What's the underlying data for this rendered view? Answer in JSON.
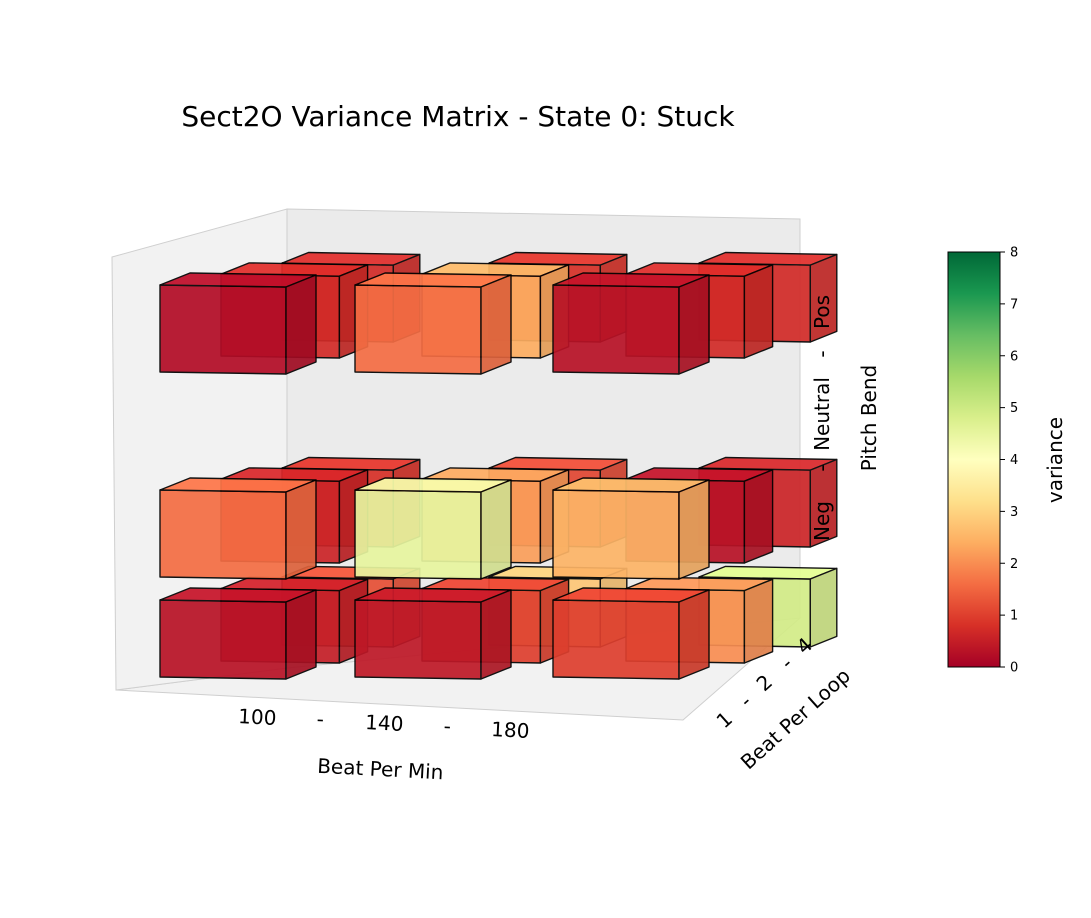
{
  "chart_data": {
    "type": "3d-bar",
    "title": "Sect2O Variance Matrix - State 0: Stuck",
    "x_axis": {
      "label": "Beat Per Min",
      "ticks": [
        "100",
        "-",
        "140",
        "-",
        "180"
      ],
      "categories": [
        "100",
        "140",
        "180"
      ]
    },
    "y_axis": {
      "label": "Beat Per Loop",
      "ticks": [
        "1",
        "-",
        "2",
        "-",
        "4"
      ],
      "categories": [
        "1",
        "2",
        "4"
      ]
    },
    "z_axis": {
      "label": "Pitch Bend",
      "ticks": [
        "Neg",
        "-",
        "Neutral",
        "-",
        "Pos"
      ],
      "categories": [
        "Neg",
        "Neutral",
        "Pos"
      ]
    },
    "colorbar": {
      "label": "variance",
      "min": 0,
      "max": 8,
      "ticks": [
        "0",
        "1",
        "2",
        "3",
        "4",
        "5",
        "6",
        "7",
        "8"
      ],
      "colormap": "RdYlGn"
    },
    "cells": [
      {
        "bpm": "100",
        "loop": "1",
        "pitch": "Neg",
        "variance": 0.3
      },
      {
        "bpm": "100",
        "loop": "2",
        "pitch": "Neg",
        "variance": 0.5
      },
      {
        "bpm": "100",
        "loop": "4",
        "pitch": "Neg",
        "variance": 1.2
      },
      {
        "bpm": "140",
        "loop": "1",
        "pitch": "Neg",
        "variance": 0.4
      },
      {
        "bpm": "140",
        "loop": "2",
        "pitch": "Neg",
        "variance": 1.0
      },
      {
        "bpm": "140",
        "loop": "4",
        "pitch": "Neg",
        "variance": 2.8
      },
      {
        "bpm": "180",
        "loop": "1",
        "pitch": "Neg",
        "variance": 1.0
      },
      {
        "bpm": "180",
        "loop": "2",
        "pitch": "Neg",
        "variance": 2.0
      },
      {
        "bpm": "180",
        "loop": "4",
        "pitch": "Neg",
        "variance": 4.9
      },
      {
        "bpm": "100",
        "loop": "1",
        "pitch": "Neutral",
        "variance": 1.6
      },
      {
        "bpm": "100",
        "loop": "2",
        "pitch": "Neutral",
        "variance": 0.6
      },
      {
        "bpm": "100",
        "loop": "4",
        "pitch": "Neutral",
        "variance": 0.8
      },
      {
        "bpm": "140",
        "loop": "1",
        "pitch": "Neutral",
        "variance": 4.5
      },
      {
        "bpm": "140",
        "loop": "2",
        "pitch": "Neutral",
        "variance": 2.2
      },
      {
        "bpm": "140",
        "loop": "4",
        "pitch": "Neutral",
        "variance": 1.1
      },
      {
        "bpm": "180",
        "loop": "1",
        "pitch": "Neutral",
        "variance": 2.5
      },
      {
        "bpm": "180",
        "loop": "2",
        "pitch": "Neutral",
        "variance": 0.3
      },
      {
        "bpm": "180",
        "loop": "4",
        "pitch": "Neutral",
        "variance": 0.6
      },
      {
        "bpm": "100",
        "loop": "1",
        "pitch": "Pos",
        "variance": 0.2
      },
      {
        "bpm": "100",
        "loop": "2",
        "pitch": "Pos",
        "variance": 0.7
      },
      {
        "bpm": "100",
        "loop": "4",
        "pitch": "Pos",
        "variance": 0.7
      },
      {
        "bpm": "140",
        "loop": "1",
        "pitch": "Pos",
        "variance": 1.6
      },
      {
        "bpm": "140",
        "loop": "2",
        "pitch": "Pos",
        "variance": 2.4
      },
      {
        "bpm": "140",
        "loop": "4",
        "pitch": "Pos",
        "variance": 0.8
      },
      {
        "bpm": "180",
        "loop": "1",
        "pitch": "Pos",
        "variance": 0.3
      },
      {
        "bpm": "180",
        "loop": "2",
        "pitch": "Pos",
        "variance": 0.7
      },
      {
        "bpm": "180",
        "loop": "4",
        "pitch": "Pos",
        "variance": 0.7
      }
    ]
  }
}
